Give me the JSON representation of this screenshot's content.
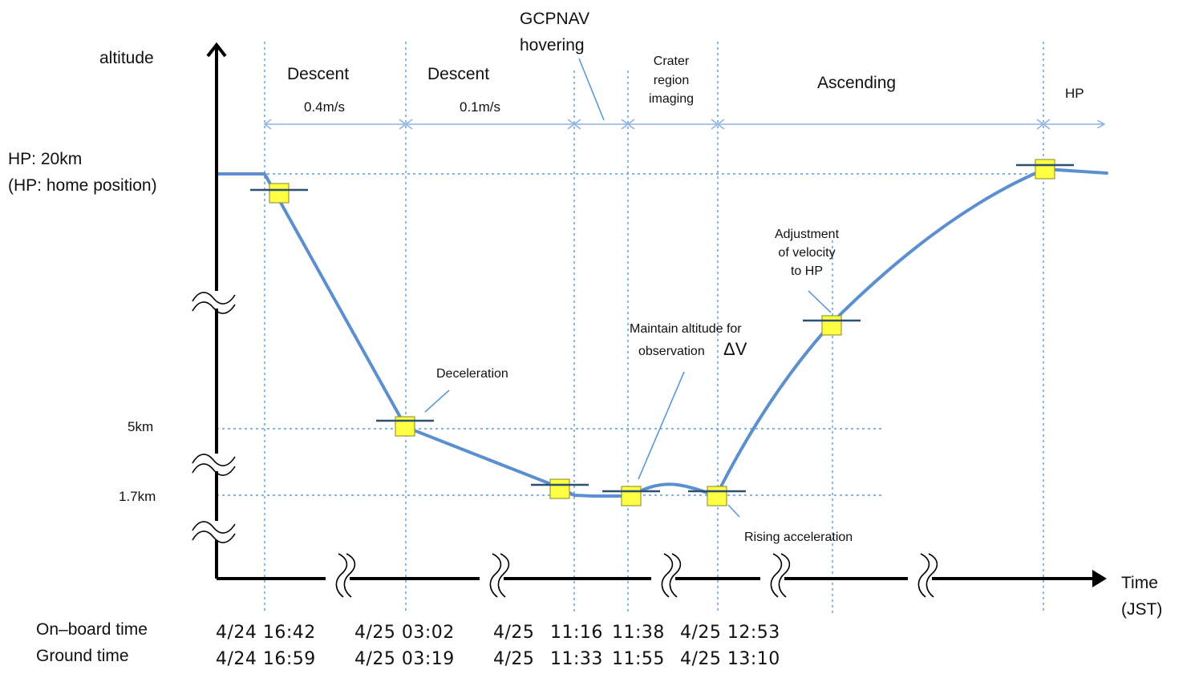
{
  "labels": {
    "altitude": "altitude",
    "hp_altitude": "HP: 20km",
    "hp_note": "(HP: home position)",
    "alt_5km": "5km",
    "alt_1_7km": "1.7km",
    "time_axis_line1": "Time",
    "time_axis_line2": "(JST)",
    "onboard_time": "On–board time",
    "ground_time": "Ground time"
  },
  "phases": {
    "descent1_title": "Descent",
    "descent1_speed": "0.4m/s",
    "descent2_title": "Descent",
    "descent2_speed": "0.1m/s",
    "gcpnav_line1": "GCPNAV",
    "gcpnav_line2": "hovering",
    "crater_line1": "Crater",
    "crater_line2": "region",
    "crater_line3": "imaging",
    "ascending": "Ascending",
    "hp": "HP"
  },
  "annotations": {
    "deceleration": "Deceleration",
    "maintain_line1": "Maintain altitude for",
    "maintain_line2": "observation",
    "delta_v": "ΔV",
    "adjust_line1": "Adjustment",
    "adjust_line2": "of velocity",
    "adjust_line3": "to HP",
    "rising": "Rising acceleration"
  },
  "times": {
    "onboard": [
      "4/24 16:42",
      "4/25 03:02",
      "4/25",
      "11:16",
      "11:38",
      "4/25 12:53"
    ],
    "ground": [
      "4/24 16:59",
      "4/25 03:19",
      "4/25",
      "11:33",
      "11:55",
      "4/25 13:10"
    ]
  },
  "colors": {
    "trajectory": "#5b8fcf",
    "grid": "#5b9bd5",
    "marker_fill": "#ffff44",
    "marker_bar": "#2f4f6f",
    "axis": "#000000"
  }
}
